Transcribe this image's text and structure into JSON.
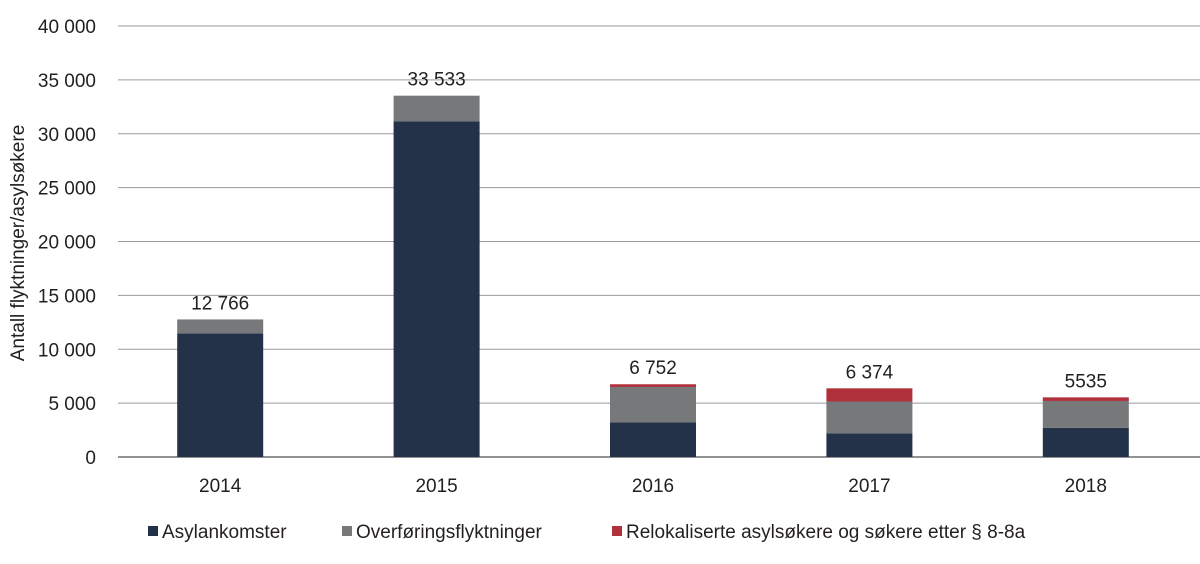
{
  "chart_data": {
    "type": "bar",
    "stacked": true,
    "categories": [
      "2014",
      "2015",
      "2016",
      "2017",
      "2018"
    ],
    "series": [
      {
        "name": "Asylankomster",
        "color": "#243249",
        "values": [
          11480,
          31145,
          3200,
          2200,
          2700
        ]
      },
      {
        "name": "Overføringsflyktninger",
        "color": "#76787a",
        "values": [
          1286,
          2388,
          3300,
          2950,
          2500
        ]
      },
      {
        "name": "Relokaliserte asylsøkere og søkere etter § 8-8a",
        "color": "#b0313c",
        "values": [
          0,
          0,
          252,
          1224,
          335
        ]
      }
    ],
    "totals": [
      "12 766",
      "33 533",
      "6 752",
      "6 374",
      "5535"
    ],
    "ylabel": "Antall flyktninger/asylsøkere",
    "xlabel": "",
    "ylim": [
      0,
      40000
    ],
    "yticks": [
      0,
      5000,
      10000,
      15000,
      20000,
      25000,
      30000,
      35000,
      40000
    ],
    "ytick_labels": [
      "0",
      "5 000",
      "10 000",
      "15 000",
      "20 000",
      "25 000",
      "30 000",
      "35 000",
      "40 000"
    ],
    "grid": true,
    "legend_position": "bottom-left"
  }
}
